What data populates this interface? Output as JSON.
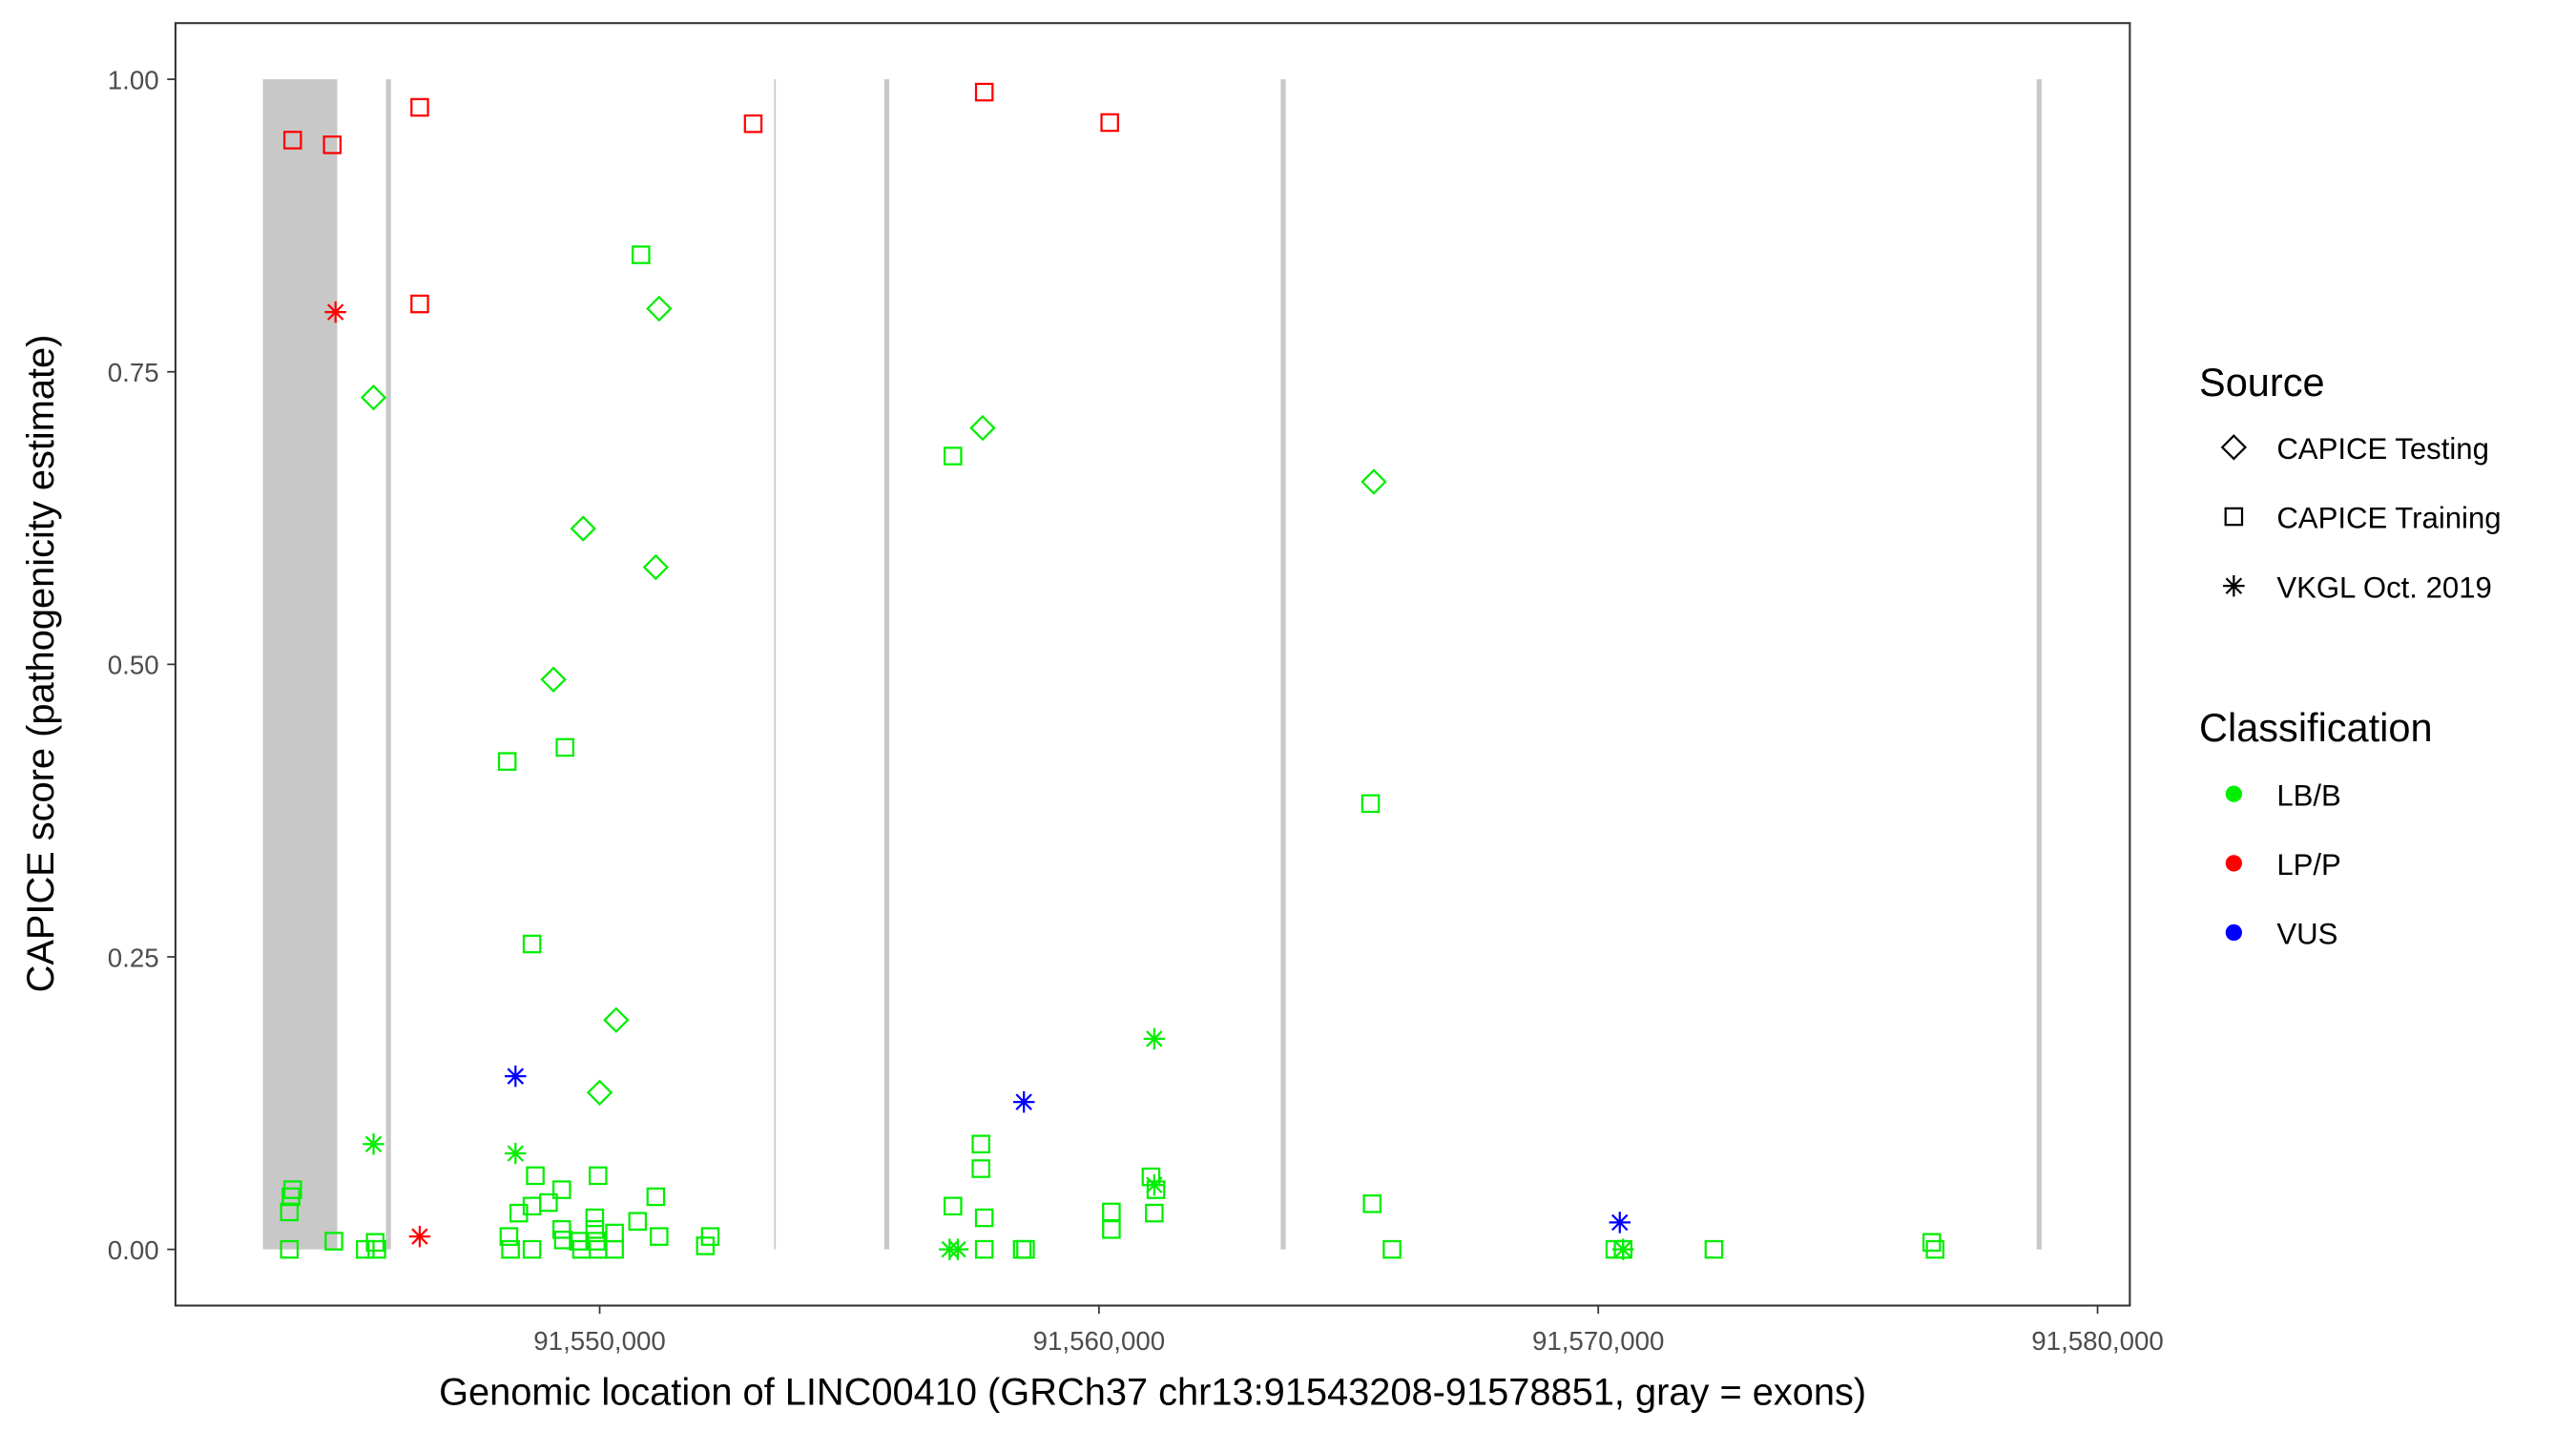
{
  "chart_data": {
    "type": "scatter",
    "xlabel": "Genomic location of LINC00410 (GRCh37 chr13:91543208-91578851, gray = exons)",
    "ylabel": "CAPICE score (pathogenicity estimate)",
    "xlim": [
      91541504,
      91580646
    ],
    "ylim": [
      -0.048,
      1.048
    ],
    "grid": false,
    "x_ticks": [
      91550000,
      91560000,
      91570000,
      91580000
    ],
    "x_tick_labels": [
      "91,550,000",
      "91,560,000",
      "91,570,000",
      "91,580,000"
    ],
    "y_ticks": [
      0,
      0.25,
      0.5,
      0.75,
      1.0
    ],
    "y_tick_labels": [
      "0.00",
      "0.25",
      "0.50",
      "0.75",
      "1.00"
    ],
    "exons": [
      [
        91543256,
        91544744
      ],
      [
        91545720,
        91545820
      ],
      [
        91553495,
        91553515
      ],
      [
        91555700,
        91555800
      ],
      [
        91563640,
        91563740
      ],
      [
        91578780,
        91578880
      ]
    ],
    "legend_placement": "right",
    "legend": {
      "source_title": "Source",
      "source_items": [
        {
          "label": "CAPICE Testing",
          "shape": "diamond"
        },
        {
          "label": "CAPICE Training",
          "shape": "square"
        },
        {
          "label": "VKGL Oct. 2019",
          "shape": "asterisk"
        }
      ],
      "class_title": "Classification",
      "class_items": [
        {
          "label": "LB/B",
          "color": "#00ee00"
        },
        {
          "label": "LP/P",
          "color": "#ff0000"
        },
        {
          "label": "VUS",
          "color": "#0000ff"
        }
      ]
    },
    "point_fields": [
      "source",
      "classification",
      "position",
      "score"
    ],
    "points": [
      [
        "square",
        "LP/P",
        91543851,
        0.948
      ],
      [
        "square",
        "LP/P",
        91544644,
        0.944
      ],
      [
        "square",
        "LP/P",
        91546396,
        0.976
      ],
      [
        "square",
        "LP/P",
        91553075,
        0.962
      ],
      [
        "square",
        "LP/P",
        91557703,
        0.989
      ],
      [
        "square",
        "LP/P",
        91560216,
        0.963
      ],
      [
        "square",
        "LP/P",
        91546396,
        0.808
      ],
      [
        "asterisk",
        "LP/P",
        91544710,
        0.801
      ],
      [
        "asterisk",
        "LP/P",
        91546396,
        0.011
      ],
      [
        "asterisk",
        "VUS",
        91548314,
        0.148
      ],
      [
        "asterisk",
        "VUS",
        91558496,
        0.126
      ],
      [
        "asterisk",
        "VUS",
        91570431,
        0.023
      ],
      [
        "diamond",
        "LB/B",
        91545471,
        0.728
      ],
      [
        "diamond",
        "LB/B",
        91551190,
        0.804
      ],
      [
        "diamond",
        "LB/B",
        91549669,
        0.616
      ],
      [
        "diamond",
        "LB/B",
        91551124,
        0.583
      ],
      [
        "diamond",
        "LB/B",
        91549074,
        0.487
      ],
      [
        "diamond",
        "LB/B",
        91550331,
        0.196
      ],
      [
        "diamond",
        "LB/B",
        91550000,
        0.134
      ],
      [
        "diamond",
        "LB/B",
        91557670,
        0.702
      ],
      [
        "diamond",
        "LB/B",
        91565505,
        0.656
      ],
      [
        "asterisk",
        "LB/B",
        91545471,
        0.09
      ],
      [
        "asterisk",
        "LB/B",
        91548314,
        0.082
      ],
      [
        "asterisk",
        "LB/B",
        91561108,
        0.18
      ],
      [
        "asterisk",
        "LB/B",
        91561108,
        0.055
      ],
      [
        "asterisk",
        "LB/B",
        91557009,
        0.0
      ],
      [
        "asterisk",
        "LB/B",
        91557174,
        0.0
      ],
      [
        "asterisk",
        "LB/B",
        91570497,
        0.0
      ],
      [
        "square",
        "LB/B",
        91550827,
        0.85
      ],
      [
        "square",
        "LB/B",
        91548149,
        0.417
      ],
      [
        "square",
        "LB/B",
        91549306,
        0.429
      ],
      [
        "square",
        "LB/B",
        91548645,
        0.261
      ],
      [
        "square",
        "LB/B",
        91557075,
        0.678
      ],
      [
        "square",
        "LB/B",
        91565439,
        0.381
      ],
      [
        "square",
        "LB/B",
        91557637,
        0.09
      ],
      [
        "square",
        "LB/B",
        91557637,
        0.069
      ],
      [
        "square",
        "LB/B",
        91557075,
        0.037
      ],
      [
        "square",
        "LB/B",
        91557703,
        0.027
      ],
      [
        "square",
        "LB/B",
        91557703,
        0.0
      ],
      [
        "square",
        "LB/B",
        91558463,
        0.0
      ],
      [
        "square",
        "LB/B",
        91558529,
        0.0
      ],
      [
        "square",
        "LB/B",
        91561042,
        0.062
      ],
      [
        "square",
        "LB/B",
        91561141,
        0.051
      ],
      [
        "square",
        "LB/B",
        91561108,
        0.031
      ],
      [
        "square",
        "LB/B",
        91560249,
        0.032
      ],
      [
        "square",
        "LB/B",
        91560249,
        0.017
      ],
      [
        "square",
        "LB/B",
        91565472,
        0.039
      ],
      [
        "square",
        "LB/B",
        91565869,
        0.0
      ],
      [
        "square",
        "LB/B",
        91570332,
        0.0
      ],
      [
        "square",
        "LB/B",
        91570497,
        0.0
      ],
      [
        "square",
        "LB/B",
        91572316,
        0.0
      ],
      [
        "square",
        "LB/B",
        91576679,
        0.006
      ],
      [
        "square",
        "LB/B",
        91576746,
        0.0
      ],
      [
        "square",
        "LB/B",
        91543851,
        0.051
      ],
      [
        "square",
        "LB/B",
        91543818,
        0.045
      ],
      [
        "square",
        "LB/B",
        91543785,
        0.032
      ],
      [
        "square",
        "LB/B",
        91543785,
        0.0
      ],
      [
        "square",
        "LB/B",
        91544677,
        0.007
      ],
      [
        "square",
        "LB/B",
        91545305,
        0.0
      ],
      [
        "square",
        "LB/B",
        91545504,
        0.006
      ],
      [
        "square",
        "LB/B",
        91545537,
        0.0
      ],
      [
        "square",
        "LB/B",
        91548711,
        0.063
      ],
      [
        "square",
        "LB/B",
        91549967,
        0.063
      ],
      [
        "square",
        "LB/B",
        91549240,
        0.051
      ],
      [
        "square",
        "LB/B",
        91551124,
        0.045
      ],
      [
        "square",
        "LB/B",
        91548380,
        0.031
      ],
      [
        "square",
        "LB/B",
        91548645,
        0.037
      ],
      [
        "square",
        "LB/B",
        91548975,
        0.04
      ],
      [
        "square",
        "LB/B",
        91550760,
        0.024
      ],
      [
        "square",
        "LB/B",
        91549901,
        0.027
      ],
      [
        "square",
        "LB/B",
        91549240,
        0.017
      ],
      [
        "square",
        "LB/B",
        91549273,
        0.008
      ],
      [
        "square",
        "LB/B",
        91548182,
        0.011
      ],
      [
        "square",
        "LB/B",
        91549901,
        0.017
      ],
      [
        "square",
        "LB/B",
        91550298,
        0.014
      ],
      [
        "square",
        "LB/B",
        91551190,
        0.011
      ],
      [
        "square",
        "LB/B",
        91552215,
        0.011
      ],
      [
        "square",
        "LB/B",
        91549934,
        0.007
      ],
      [
        "square",
        "LB/B",
        91549636,
        0.0
      ],
      [
        "square",
        "LB/B",
        91548215,
        0.0
      ],
      [
        "square",
        "LB/B",
        91548645,
        0.0
      ],
      [
        "square",
        "LB/B",
        91549967,
        0.0
      ],
      [
        "square",
        "LB/B",
        91550298,
        0.0
      ],
      [
        "square",
        "LB/B",
        91552116,
        0.003
      ],
      [
        "square",
        "LB/B",
        91549570,
        0.007
      ]
    ]
  }
}
